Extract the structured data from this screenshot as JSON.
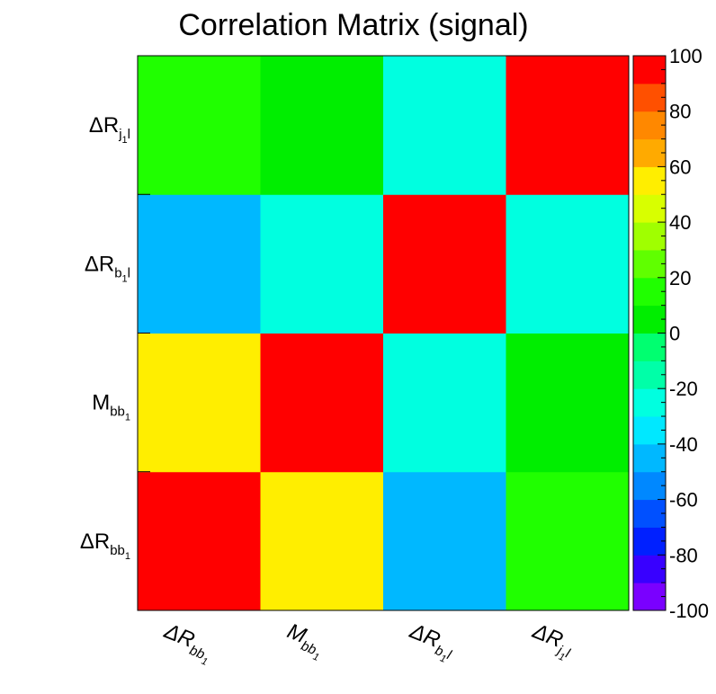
{
  "chart_data": {
    "type": "heatmap",
    "title": "Correlation Matrix (signal)",
    "variables": [
      {
        "id": "dR_bb1",
        "main": "ΔR",
        "sub": "bb",
        "subsub": "1",
        "tail": ""
      },
      {
        "id": "M_bb1",
        "main": "M",
        "sub": "bb",
        "subsub": "1",
        "tail": ""
      },
      {
        "id": "dR_b1l",
        "main": "ΔR",
        "sub": "b",
        "subsub": "1",
        "tail": "l"
      },
      {
        "id": "dR_j1l",
        "main": "ΔR",
        "sub": "j",
        "subsub": "1",
        "tail": "l"
      }
    ],
    "x_order": [
      "dR_bb1",
      "M_bb1",
      "dR_b1l",
      "dR_j1l"
    ],
    "y_order_bottom_to_top": [
      "dR_bb1",
      "M_bb1",
      "dR_b1l",
      "dR_j1l"
    ],
    "matrix": [
      [
        100,
        52,
        -48,
        12
      ],
      [
        52,
        100,
        -25,
        5
      ],
      [
        -48,
        -25,
        100,
        -25
      ],
      [
        12,
        5,
        -25,
        100
      ]
    ],
    "zlim": [
      -100,
      100
    ],
    "colorbar": {
      "ticks": [
        "100",
        "80",
        "60",
        "40",
        "20",
        "0",
        "-20",
        "-40",
        "-60",
        "-80",
        "-100"
      ],
      "tick_values": [
        100,
        80,
        60,
        40,
        20,
        0,
        -20,
        -40,
        -60,
        -80,
        -100
      ],
      "colors_bottom_to_top": [
        "#7a00ff",
        "#3800ff",
        "#0020ff",
        "#0050ff",
        "#0088ff",
        "#00b8ff",
        "#00e8ff",
        "#00ffe0",
        "#00ffa8",
        "#00ff70",
        "#00ee00",
        "#20ff00",
        "#60ff00",
        "#a0ff00",
        "#d8ff00",
        "#ffee00",
        "#ffaa00",
        "#ff8800",
        "#ff5000",
        "#ff0000"
      ]
    },
    "grid": false,
    "legend": "colorbar-right"
  }
}
